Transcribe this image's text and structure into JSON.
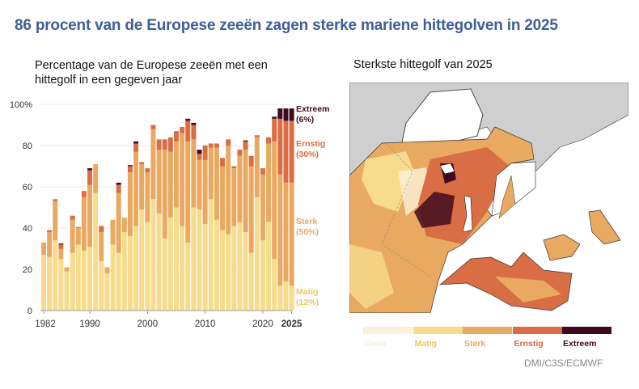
{
  "title": "86 procent van de Europese zeeën zagen sterke mariene hittegolven in 2025",
  "left_subtitle": "Percentage van de Europese zeeën met een hittegolf in een gegeven jaar",
  "right_subtitle": "Sterkste hittegolf van 2025",
  "source": "DMI/C3S/ECMWF",
  "colors": {
    "Geen": "#fbf1d8",
    "Matig": "#f6dc8c",
    "Sterk": "#e9a961",
    "Ernstig": "#d96d44",
    "Extreem": "#3f0a1f",
    "title": "#3f5f96",
    "land": "#cfcfcf"
  },
  "map_legend": [
    "Geen",
    "Matig",
    "Sterk",
    "Ernstig",
    "Extreem"
  ],
  "chart_data": {
    "type": "bar",
    "stacked": true,
    "ylim": [
      0,
      100
    ],
    "yticks": [
      "0",
      "20",
      "40",
      "60",
      "80",
      "100%"
    ],
    "xticks": [
      "1982",
      "1990",
      "2000",
      "2010",
      "2020",
      "2025"
    ],
    "grid": true,
    "categories": [
      1982,
      1983,
      1984,
      1985,
      1986,
      1987,
      1988,
      1989,
      1990,
      1991,
      1992,
      1993,
      1994,
      1995,
      1996,
      1997,
      1998,
      1999,
      2000,
      2001,
      2002,
      2003,
      2004,
      2005,
      2006,
      2007,
      2008,
      2009,
      2010,
      2011,
      2012,
      2013,
      2014,
      2015,
      2016,
      2017,
      2018,
      2019,
      2020,
      2021,
      2022,
      2023,
      2024,
      2025
    ],
    "series": [
      {
        "name": "Matig",
        "values": [
          27,
          26,
          34,
          25,
          19,
          28,
          32,
          29,
          31,
          57,
          24,
          18,
          32,
          28,
          38,
          36,
          41,
          49,
          43,
          54,
          47,
          35,
          45,
          50,
          41,
          33,
          50,
          49,
          42,
          54,
          44,
          39,
          37,
          41,
          43,
          38,
          28,
          55,
          34,
          43,
          25,
          12,
          14,
          12
        ]
      },
      {
        "name": "Sterk",
        "values": [
          6,
          12,
          19,
          5,
          2,
          16,
          8,
          26,
          30,
          14,
          14,
          3,
          12,
          29,
          7,
          31,
          36,
          22,
          24,
          34,
          31,
          43,
          32,
          32,
          45,
          49,
          33,
          24,
          31,
          25,
          35,
          31,
          43,
          28,
          32,
          40,
          42,
          29,
          32,
          38,
          57,
          54,
          48,
          50
        ]
      },
      {
        "name": "Ernstig",
        "values": [
          0,
          1,
          1,
          2,
          0,
          2,
          0.5,
          3,
          7,
          0,
          3,
          0,
          0,
          4,
          0,
          3,
          4,
          1,
          2,
          2,
          5,
          5,
          7,
          5,
          3,
          10,
          7,
          3,
          7,
          2,
          2,
          4,
          3,
          1,
          3,
          4,
          5,
          1,
          3,
          3,
          11,
          27,
          30,
          30
        ]
      },
      {
        "name": "Extreem",
        "values": [
          0,
          0,
          0,
          0.5,
          0,
          0,
          0,
          0,
          1,
          0,
          0,
          0,
          0,
          1,
          0,
          0.5,
          1,
          0,
          0,
          0,
          0,
          0,
          0,
          0,
          0,
          1,
          1,
          2,
          0,
          0,
          0,
          0,
          0,
          0,
          0,
          0.5,
          0,
          0,
          0,
          0,
          1,
          5,
          6,
          6
        ]
      }
    ],
    "end_labels": [
      {
        "name": "Extreem",
        "pct": "(6%)"
      },
      {
        "name": "Ernstig",
        "pct": "(30%)"
      },
      {
        "name": "Sterk",
        "pct": "(50%)"
      },
      {
        "name": "Matig",
        "pct": "(12%)"
      }
    ]
  }
}
